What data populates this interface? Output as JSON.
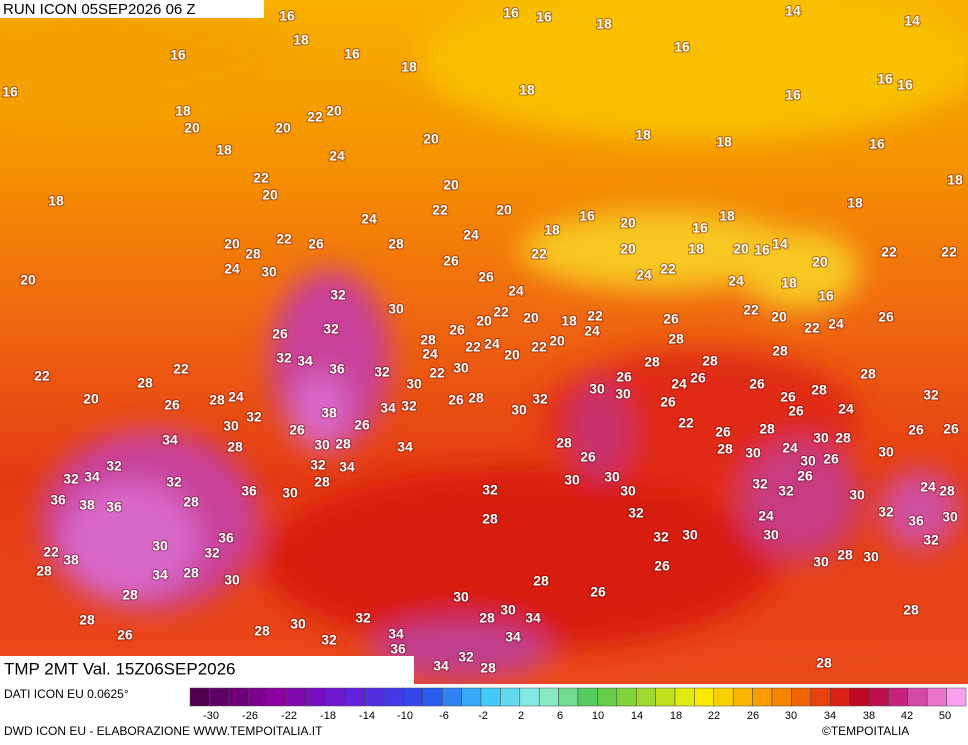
{
  "header": {
    "run": "RUN ICON 05SEP2026 06 Z"
  },
  "map": {
    "labels": [
      16,
      18,
      16,
      16,
      18,
      16,
      16,
      18,
      14,
      14,
      16,
      16,
      16,
      16,
      18,
      20,
      20,
      22,
      20,
      18,
      16,
      18,
      24,
      20,
      18,
      18,
      16,
      18,
      22,
      20,
      18,
      20,
      22,
      20,
      18,
      24,
      18,
      16,
      20,
      16,
      18,
      20,
      28,
      22,
      26,
      28,
      24,
      22,
      20,
      18,
      20,
      16,
      14,
      22,
      22,
      20,
      24,
      30,
      26,
      26,
      24,
      22,
      24,
      20,
      18,
      32,
      24,
      16,
      30,
      22,
      20,
      20,
      18,
      22,
      22,
      26,
      26,
      20,
      22,
      24,
      26,
      32,
      28,
      26,
      24,
      22,
      24,
      20,
      22,
      20,
      28,
      32,
      34,
      36,
      32,
      24,
      22,
      30,
      28,
      28,
      28,
      26,
      24,
      26,
      22,
      22,
      28,
      30,
      30,
      30,
      26,
      28,
      20,
      26,
      28,
      24,
      32,
      38,
      34,
      32,
      26,
      28,
      32,
      30,
      26,
      28,
      26,
      24,
      32,
      34,
      30,
      28,
      26,
      30,
      28,
      26,
      34,
      28,
      22,
      26,
      26,
      28,
      24,
      30,
      28,
      26,
      26,
      32,
      34,
      32,
      32,
      36,
      32,
      34,
      30,
      28,
      26,
      30,
      28,
      26,
      30,
      30,
      30,
      30,
      36,
      38,
      36,
      28,
      32,
      30,
      32,
      32,
      26,
      30,
      24,
      28,
      32,
      36,
      30,
      28,
      32,
      24,
      22,
      28,
      38,
      30,
      32,
      36,
      34,
      28,
      30,
      30,
      32,
      30,
      32,
      30,
      28,
      30,
      26,
      28,
      28,
      30,
      26,
      28,
      26,
      28,
      30,
      32,
      28,
      30,
      34,
      28,
      34,
      32,
      34,
      36,
      32,
      34,
      28,
      28
    ]
  },
  "panel": {
    "title": "TMP 2MT Val. 15Z06SEP2026"
  },
  "footer": {
    "source": "DATI ICON EU 0.0625°",
    "credit": "DWD ICON EU - ELABORAZIONE WWW.TEMPOITALIA.IT",
    "copyright": "©TEMPOITALIA"
  },
  "colorbar": {
    "ticks": [
      -30,
      -26,
      -22,
      -18,
      -14,
      -10,
      -6,
      -2,
      2,
      6,
      10,
      14,
      18,
      22,
      26,
      30,
      34,
      38,
      42,
      50
    ]
  }
}
